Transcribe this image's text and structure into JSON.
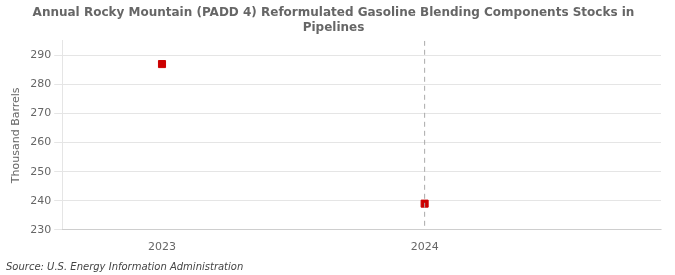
{
  "chart_data": {
    "type": "scatter",
    "title": "Annual Rocky Mountain (PADD 4) Reformulated Gasoline Blending Components Stocks in\nPipelines",
    "ylabel": "Thousand Barrels",
    "annotation": "Source: U.S. Energy Information Administration",
    "x": [
      2023,
      2024
    ],
    "values": [
      287,
      239
    ],
    "color": "#cc0000",
    "marker": "square",
    "xlim": [
      2022.62,
      2024.9
    ],
    "xticks": [
      2023,
      2024
    ],
    "ylim": [
      230,
      295
    ],
    "yticks": [
      230,
      240,
      250,
      260,
      270,
      280,
      290
    ],
    "grid": "y",
    "vline": {
      "x": 2024,
      "color": "#aaaaaa",
      "line_style": "dashed"
    }
  }
}
